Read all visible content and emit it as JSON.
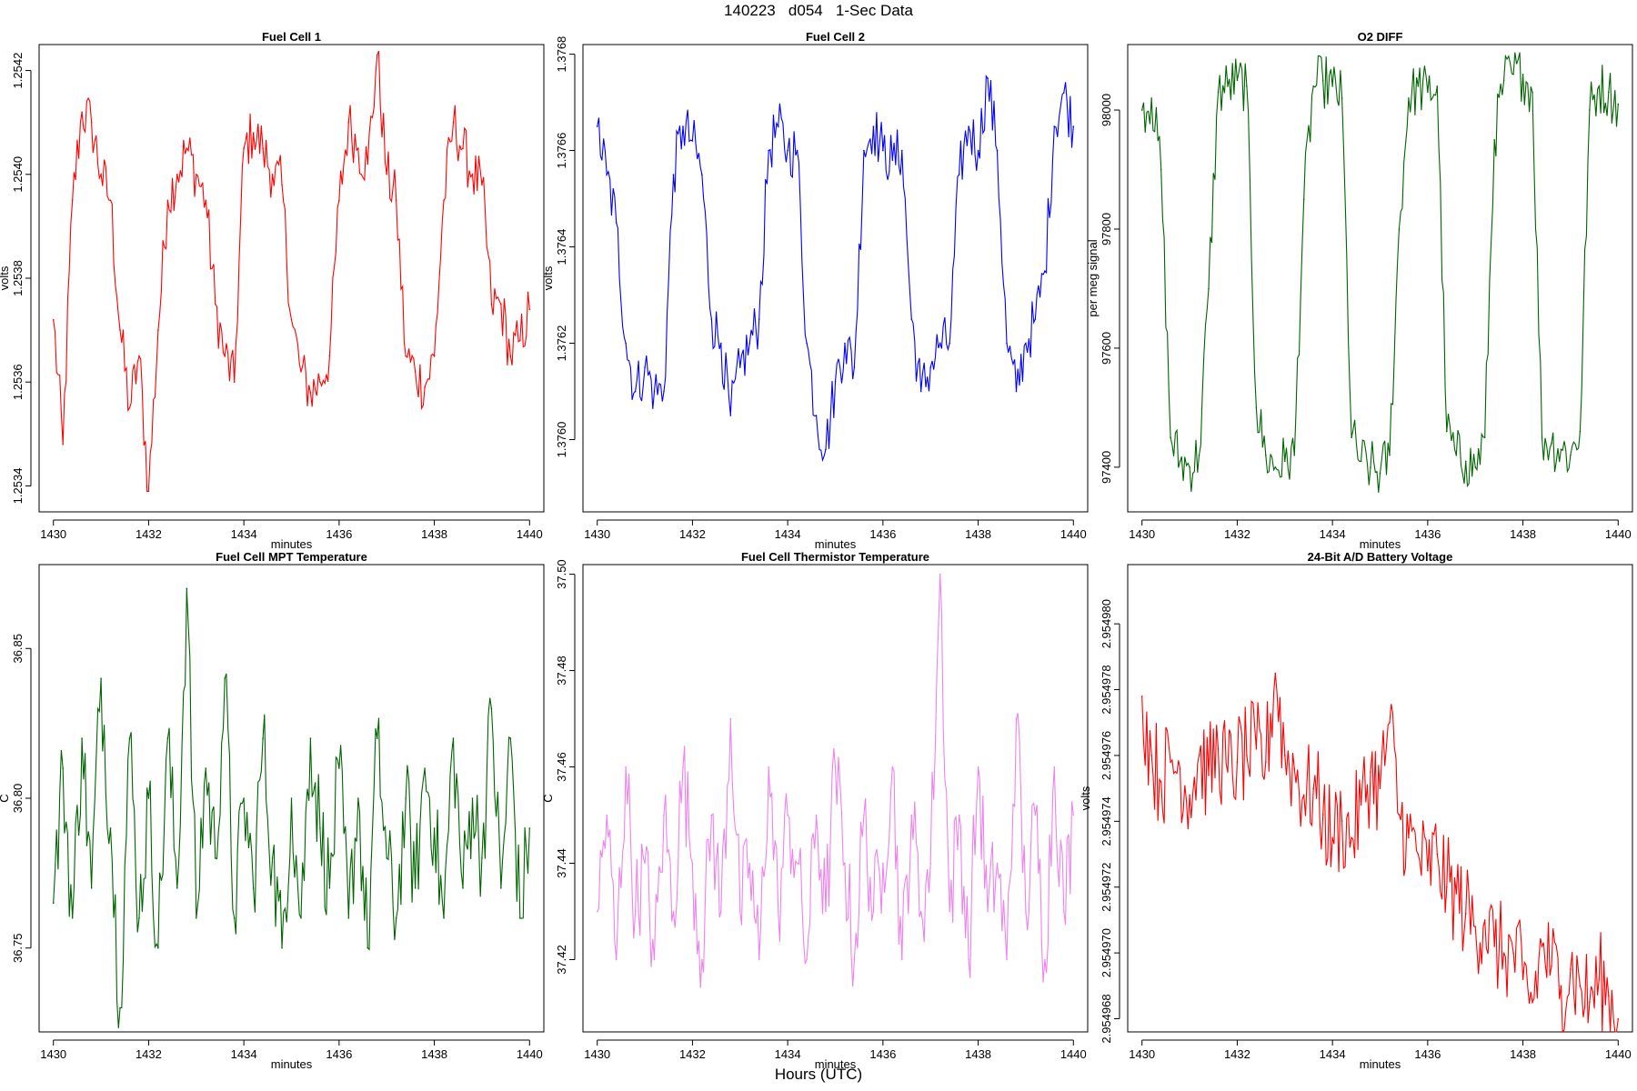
{
  "page_title": "140223   d054   1-Sec Data",
  "footer_xlabel": "Hours (UTC)",
  "chart_data": [
    {
      "type": "line",
      "title": "Fuel Cell 1",
      "xlabel": "minutes",
      "ylabel": "volts",
      "color": "#ff0000",
      "xlim": [
        1429.7,
        1440.3
      ],
      "ylim": [
        1.25335,
        1.25425
      ],
      "xticks": [
        "1430",
        "1432",
        "1434",
        "1436",
        "1438",
        "1440"
      ],
      "xtick_values": [
        1430,
        1432,
        1434,
        1436,
        1438,
        1440
      ],
      "yticks": [
        "1.2534",
        "1.2536",
        "1.2538",
        "1.2540",
        "1.2542"
      ],
      "ytick_values": [
        1.2534,
        1.2536,
        1.2538,
        1.254,
        1.2542
      ],
      "series": [
        {
          "name": "Fuel Cell 1",
          "x": [
            1430.0,
            1430.2,
            1430.4,
            1430.6,
            1430.8,
            1431.0,
            1431.2,
            1431.4,
            1431.6,
            1431.8,
            1432.0,
            1432.2,
            1432.4,
            1432.6,
            1432.8,
            1433.0,
            1433.2,
            1433.4,
            1433.6,
            1433.8,
            1434.0,
            1434.2,
            1434.4,
            1434.6,
            1434.8,
            1435.0,
            1435.2,
            1435.4,
            1435.6,
            1435.8,
            1436.0,
            1436.2,
            1436.4,
            1436.6,
            1436.8,
            1437.0,
            1437.2,
            1437.4,
            1437.6,
            1437.8,
            1438.0,
            1438.2,
            1438.4,
            1438.6,
            1438.8,
            1439.0,
            1439.2,
            1439.4,
            1439.6,
            1439.8,
            1440.0
          ],
          "values": [
            1.25372,
            1.25348,
            1.25395,
            1.25412,
            1.2541,
            1.254,
            1.25395,
            1.2537,
            1.25355,
            1.25365,
            1.25339,
            1.2537,
            1.25395,
            1.254,
            1.25405,
            1.254,
            1.25395,
            1.25375,
            1.25365,
            1.2536,
            1.25405,
            1.25408,
            1.25405,
            1.254,
            1.25398,
            1.25372,
            1.25362,
            1.25358,
            1.2536,
            1.25365,
            1.25395,
            1.2541,
            1.25405,
            1.25402,
            1.25423,
            1.254,
            1.25395,
            1.25365,
            1.25362,
            1.25359,
            1.25365,
            1.25395,
            1.2541,
            1.25405,
            1.254,
            1.25398,
            1.25375,
            1.25375,
            1.25365,
            1.25368,
            1.25374
          ]
        }
      ]
    },
    {
      "type": "line",
      "title": "Fuel Cell 2",
      "xlabel": "minutes",
      "ylabel": "volts",
      "color": "#0000ff",
      "xlim": [
        1429.7,
        1440.3
      ],
      "ylim": [
        1.37585,
        1.37682
      ],
      "xticks": [
        "1430",
        "1432",
        "1434",
        "1436",
        "1438",
        "1440"
      ],
      "xtick_values": [
        1430,
        1432,
        1434,
        1436,
        1438,
        1440
      ],
      "yticks": [
        "1.3760",
        "1.3762",
        "1.3764",
        "1.3766",
        "1.3768"
      ],
      "ytick_values": [
        1.376,
        1.3762,
        1.3764,
        1.3766,
        1.3768
      ],
      "series": [
        {
          "name": "Fuel Cell 2",
          "x": [
            1430.0,
            1430.2,
            1430.4,
            1430.6,
            1430.8,
            1431.0,
            1431.2,
            1431.4,
            1431.6,
            1431.8,
            1432.0,
            1432.2,
            1432.4,
            1432.6,
            1432.8,
            1433.0,
            1433.2,
            1433.4,
            1433.6,
            1433.8,
            1434.0,
            1434.2,
            1434.4,
            1434.6,
            1434.8,
            1435.0,
            1435.2,
            1435.4,
            1435.6,
            1435.8,
            1436.0,
            1436.2,
            1436.4,
            1436.6,
            1436.8,
            1437.0,
            1437.2,
            1437.4,
            1437.6,
            1437.8,
            1438.0,
            1438.2,
            1438.4,
            1438.6,
            1438.8,
            1439.0,
            1439.2,
            1439.4,
            1439.6,
            1439.8,
            1440.0
          ],
          "values": [
            1.37665,
            1.37655,
            1.37645,
            1.3762,
            1.3761,
            1.37615,
            1.3761,
            1.3761,
            1.37655,
            1.37665,
            1.37662,
            1.37655,
            1.37625,
            1.3762,
            1.37605,
            1.37615,
            1.3762,
            1.37625,
            1.3766,
            1.37665,
            1.3766,
            1.3766,
            1.3762,
            1.37605,
            1.37598,
            1.37612,
            1.3762,
            1.37615,
            1.3766,
            1.37665,
            1.3766,
            1.37658,
            1.3766,
            1.37625,
            1.3761,
            1.37615,
            1.3762,
            1.3762,
            1.37655,
            1.37665,
            1.3766,
            1.37675,
            1.3766,
            1.3762,
            1.3761,
            1.3762,
            1.37625,
            1.37635,
            1.37665,
            1.37672,
            1.37665
          ]
        }
      ]
    },
    {
      "type": "line",
      "title": "O2 DIFF",
      "xlabel": "minutes",
      "ylabel": "per meg signal",
      "color": "#006400",
      "xlim": [
        1429.7,
        1440.3
      ],
      "ylim": [
        97325,
        98110
      ],
      "xticks": [
        "1430",
        "1432",
        "1434",
        "1436",
        "1438",
        "1440"
      ],
      "xtick_values": [
        1430,
        1432,
        1434,
        1436,
        1438,
        1440
      ],
      "yticks": [
        "97400",
        "97600",
        "97800",
        "98000"
      ],
      "ytick_values": [
        97400,
        97600,
        97800,
        98000
      ],
      "series": [
        {
          "name": "O2 DIFF",
          "x": [
            1430.0,
            1430.2,
            1430.4,
            1430.6,
            1430.8,
            1431.0,
            1431.2,
            1431.4,
            1431.6,
            1431.8,
            1432.0,
            1432.2,
            1432.4,
            1432.6,
            1432.8,
            1433.0,
            1433.2,
            1433.4,
            1433.6,
            1433.8,
            1434.0,
            1434.2,
            1434.4,
            1434.6,
            1434.8,
            1435.0,
            1435.2,
            1435.4,
            1435.6,
            1435.8,
            1436.0,
            1436.2,
            1436.4,
            1436.6,
            1436.8,
            1437.0,
            1437.2,
            1437.4,
            1437.6,
            1437.8,
            1438.0,
            1438.2,
            1438.4,
            1438.6,
            1438.8,
            1439.0,
            1439.2,
            1439.4,
            1439.6,
            1439.8,
            1440.0
          ],
          "values": [
            98000,
            98020,
            97900,
            97450,
            97410,
            97400,
            97420,
            97700,
            98030,
            98040,
            98050,
            98040,
            97500,
            97420,
            97400,
            97410,
            97420,
            97850,
            98040,
            98050,
            98040,
            98020,
            97450,
            97410,
            97400,
            97390,
            97420,
            97800,
            98020,
            98040,
            98030,
            98040,
            97460,
            97420,
            97410,
            97400,
            97450,
            97950,
            98050,
            98060,
            98060,
            98030,
            97450,
            97440,
            97430,
            97420,
            97460,
            98000,
            98040,
            98030,
            98010
          ]
        }
      ]
    },
    {
      "type": "line",
      "title": "Fuel Cell MPT Temperature",
      "xlabel": "minutes",
      "ylabel": "C",
      "color": "#006400",
      "xlim": [
        1429.7,
        1440.3
      ],
      "ylim": [
        36.722,
        36.878
      ],
      "xticks": [
        "1430",
        "1432",
        "1434",
        "1436",
        "1438",
        "1440"
      ],
      "xtick_values": [
        1430,
        1432,
        1434,
        1436,
        1438,
        1440
      ],
      "yticks": [
        "36.75",
        "36.80",
        "36.85"
      ],
      "ytick_values": [
        36.75,
        36.8,
        36.85
      ],
      "series": [
        {
          "name": "Fuel Cell MPT Temperature",
          "x": [
            1430.0,
            1430.2,
            1430.4,
            1430.6,
            1430.8,
            1431.0,
            1431.2,
            1431.4,
            1431.6,
            1431.8,
            1432.0,
            1432.2,
            1432.4,
            1432.6,
            1432.8,
            1433.0,
            1433.2,
            1433.4,
            1433.6,
            1433.8,
            1434.0,
            1434.2,
            1434.4,
            1434.6,
            1434.8,
            1435.0,
            1435.2,
            1435.4,
            1435.6,
            1435.8,
            1436.0,
            1436.2,
            1436.4,
            1436.6,
            1436.8,
            1437.0,
            1437.2,
            1437.4,
            1437.6,
            1437.8,
            1438.0,
            1438.2,
            1438.4,
            1438.6,
            1438.8,
            1439.0,
            1439.2,
            1439.4,
            1439.6,
            1439.8,
            1440.0
          ],
          "values": [
            36.765,
            36.81,
            36.76,
            36.82,
            36.77,
            36.84,
            36.79,
            36.73,
            36.82,
            36.76,
            36.8,
            36.75,
            36.82,
            36.77,
            36.87,
            36.76,
            36.81,
            36.78,
            36.84,
            36.76,
            36.8,
            36.77,
            36.82,
            36.78,
            36.75,
            36.8,
            36.76,
            36.82,
            36.79,
            36.77,
            36.81,
            36.76,
            36.8,
            36.75,
            36.82,
            36.78,
            36.76,
            36.8,
            36.77,
            36.81,
            36.79,
            36.76,
            36.82,
            36.77,
            36.8,
            36.78,
            36.83,
            36.77,
            36.82,
            36.76,
            36.79
          ]
        }
      ]
    },
    {
      "type": "line",
      "title": "Fuel Cell Thermistor Temperature",
      "xlabel": "minutes",
      "ylabel": "C",
      "color": "#ee82ee",
      "xlim": [
        1429.7,
        1440.3
      ],
      "ylim": [
        37.405,
        37.502
      ],
      "xticks": [
        "1430",
        "1432",
        "1434",
        "1436",
        "1438",
        "1440"
      ],
      "xtick_values": [
        1430,
        1432,
        1434,
        1436,
        1438,
        1440
      ],
      "yticks": [
        "37.42",
        "37.44",
        "37.46",
        "37.48",
        "37.50"
      ],
      "ytick_values": [
        37.42,
        37.44,
        37.46,
        37.48,
        37.5
      ],
      "series": [
        {
          "name": "Fuel Cell Thermistor Temperature",
          "x": [
            1430.0,
            1430.2,
            1430.4,
            1430.6,
            1430.8,
            1431.0,
            1431.2,
            1431.4,
            1431.6,
            1431.8,
            1432.0,
            1432.2,
            1432.4,
            1432.6,
            1432.8,
            1433.0,
            1433.2,
            1433.4,
            1433.6,
            1433.8,
            1434.0,
            1434.2,
            1434.4,
            1434.6,
            1434.8,
            1435.0,
            1435.2,
            1435.4,
            1435.6,
            1435.8,
            1436.0,
            1436.2,
            1436.4,
            1436.6,
            1436.8,
            1437.0,
            1437.2,
            1437.4,
            1437.6,
            1437.8,
            1438.0,
            1438.2,
            1438.4,
            1438.6,
            1438.8,
            1439.0,
            1439.2,
            1439.4,
            1439.6,
            1439.8,
            1440.0
          ],
          "values": [
            37.43,
            37.45,
            37.42,
            37.46,
            37.43,
            37.44,
            37.42,
            37.45,
            37.43,
            37.46,
            37.44,
            37.42,
            37.45,
            37.43,
            37.47,
            37.43,
            37.44,
            37.42,
            37.46,
            37.43,
            37.45,
            37.44,
            37.42,
            37.45,
            37.43,
            37.46,
            37.44,
            37.42,
            37.45,
            37.43,
            37.44,
            37.46,
            37.42,
            37.45,
            37.43,
            37.44,
            37.5,
            37.43,
            37.45,
            37.42,
            37.46,
            37.43,
            37.44,
            37.42,
            37.47,
            37.43,
            37.45,
            37.42,
            37.46,
            37.43,
            37.45
          ]
        }
      ]
    },
    {
      "type": "line",
      "title": "24-Bit A/D Battery Voltage",
      "xlabel": "minutes",
      "ylabel": "volts",
      "color": "#ff0000",
      "xlim": [
        1429.7,
        1440.3
      ],
      "ylim": [
        2.9549676,
        2.9549818
      ],
      "xticks": [
        "1430",
        "1432",
        "1434",
        "1436",
        "1438",
        "1440"
      ],
      "xtick_values": [
        1430,
        1432,
        1434,
        1436,
        1438,
        1440
      ],
      "yticks": [
        "2.954968",
        "2.954970",
        "2.954972",
        "2.954974",
        "2.954976",
        "2.954978",
        "2.954980"
      ],
      "ytick_values": [
        2.954968,
        2.95497,
        2.954972,
        2.954974,
        2.954976,
        2.954978,
        2.95498
      ],
      "series": [
        {
          "name": "24-Bit A/D Battery Voltage",
          "x": [
            1430.0,
            1430.2,
            1430.4,
            1430.6,
            1430.8,
            1431.0,
            1431.2,
            1431.4,
            1431.6,
            1431.8,
            1432.0,
            1432.2,
            1432.4,
            1432.6,
            1432.8,
            1433.0,
            1433.2,
            1433.4,
            1433.6,
            1433.8,
            1434.0,
            1434.2,
            1434.4,
            1434.6,
            1434.8,
            1435.0,
            1435.2,
            1435.4,
            1435.6,
            1435.8,
            1436.0,
            1436.2,
            1436.4,
            1436.6,
            1436.8,
            1437.0,
            1437.2,
            1437.4,
            1437.6,
            1437.8,
            1438.0,
            1438.2,
            1438.4,
            1438.6,
            1438.8,
            1439.0,
            1439.2,
            1439.4,
            1439.6,
            1439.8,
            1440.0
          ],
          "values": [
            2.9549778,
            2.954976,
            2.9549752,
            2.9549758,
            2.9549756,
            2.9549748,
            2.954976,
            2.9549754,
            2.9549762,
            2.9549755,
            2.9549758,
            2.954976,
            2.9549762,
            2.9549758,
            2.9549785,
            2.954976,
            2.9549756,
            2.9549748,
            2.954975,
            2.9549742,
            2.9549735,
            2.954974,
            2.9549735,
            2.9549745,
            2.9549755,
            2.954975,
            2.954977,
            2.9549742,
            2.9549735,
            2.954973,
            2.9549725,
            2.954973,
            2.954972,
            2.9549718,
            2.9549712,
            2.9549708,
            2.954971,
            2.9549702,
            2.95497,
            2.95497,
            2.9549692,
            2.9549685,
            2.9549702,
            2.9549696,
            2.954969,
            2.9549695,
            2.954969,
            2.9549685,
            2.9549692,
            2.9549687,
            2.954968
          ]
        }
      ]
    }
  ]
}
